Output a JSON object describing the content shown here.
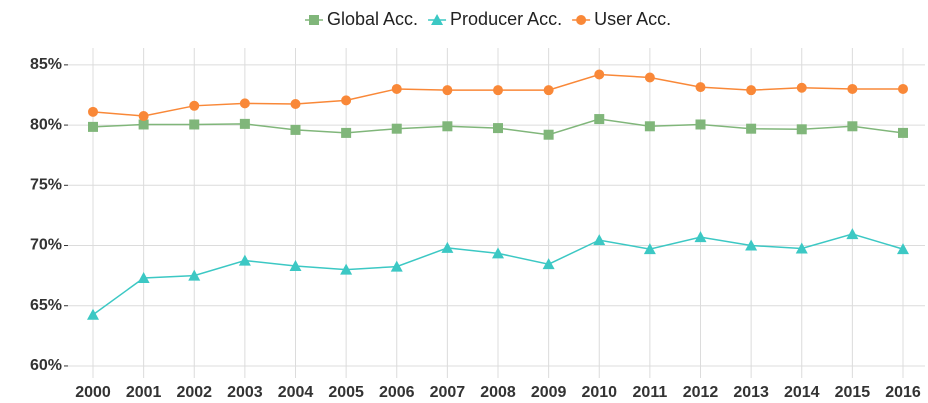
{
  "chart_data": {
    "type": "line",
    "categories": [
      "2000",
      "2001",
      "2002",
      "2003",
      "2004",
      "2005",
      "2006",
      "2007",
      "2008",
      "2009",
      "2010",
      "2011",
      "2012",
      "2013",
      "2014",
      "2015",
      "2016"
    ],
    "series": [
      {
        "name": "Global Acc.",
        "color": "#80b67a",
        "marker": "square",
        "values": [
          79.85,
          80.05,
          80.05,
          80.1,
          79.6,
          79.35,
          79.7,
          79.9,
          79.75,
          79.2,
          80.5,
          79.9,
          80.05,
          79.7,
          79.65,
          79.9,
          79.35
        ]
      },
      {
        "name": "Producer Acc.",
        "color": "#3cc8c4",
        "marker": "triangle",
        "values": [
          64.25,
          67.3,
          67.5,
          68.75,
          68.3,
          68.0,
          68.25,
          69.8,
          69.35,
          68.45,
          70.45,
          69.7,
          70.7,
          70.0,
          69.75,
          70.95,
          69.7
        ]
      },
      {
        "name": "User Acc.",
        "color": "#f98838",
        "marker": "circle",
        "values": [
          81.1,
          80.75,
          81.6,
          81.8,
          81.75,
          82.05,
          83.0,
          82.9,
          82.9,
          82.9,
          84.2,
          83.95,
          83.15,
          82.9,
          83.1,
          83.0,
          83.0
        ]
      }
    ],
    "ylim": [
      59,
      86.4
    ],
    "yticks": [
      {
        "value": 60,
        "label": "60%"
      },
      {
        "value": 65,
        "label": "65%"
      },
      {
        "value": 70,
        "label": "70%"
      },
      {
        "value": 75,
        "label": "75%"
      },
      {
        "value": 80,
        "label": "80%"
      },
      {
        "value": 85,
        "label": "85%"
      }
    ],
    "grid": true,
    "legend": "top"
  }
}
